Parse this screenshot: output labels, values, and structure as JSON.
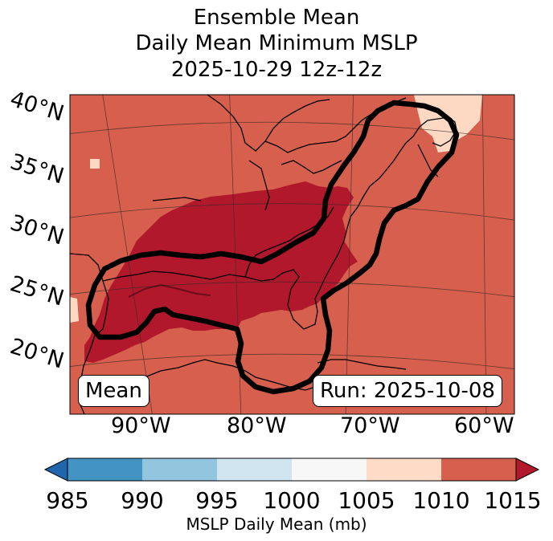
{
  "title": {
    "line1": "Ensemble Mean",
    "line2": "Daily Mean Minimum MSLP",
    "line3": "2025-10-29 12z-12z"
  },
  "map": {
    "lat_labels": [
      "40°N",
      "35°N",
      "30°N",
      "25°N",
      "20°N"
    ],
    "lon_labels": [
      "90°W",
      "80°W",
      "70°W",
      "60°W"
    ],
    "mean_tag": "Mean",
    "run_tag": "Run: 2025-10-08",
    "colors": {
      "band_1005_1010": "#fdd9c4",
      "band_1010_1015": "#d6604d",
      "band_above_1015": "#b2182b",
      "contour": "#000000"
    }
  },
  "colorbar": {
    "ticks": [
      "985",
      "990",
      "995",
      "1000",
      "1005",
      "1010",
      "1015"
    ],
    "label": "MSLP Daily Mean (mb)",
    "colors": [
      "#2166ac",
      "#4393c3",
      "#92c5de",
      "#d1e5f0",
      "#f7f7f7",
      "#fddbc7",
      "#d6604d",
      "#b2182b"
    ]
  }
}
